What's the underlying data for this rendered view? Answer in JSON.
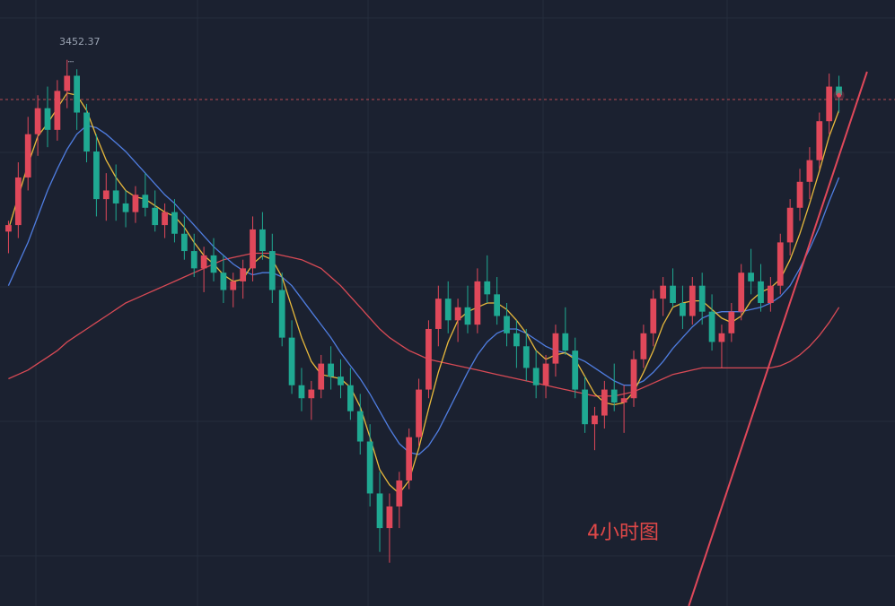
{
  "chart_data": {
    "type": "candlestick",
    "title": "4小时图",
    "max_marker": "3452.37",
    "ylim": [
      3200,
      3480
    ],
    "grid": true,
    "colors": {
      "background": "#1b2130",
      "grid": "#252d3d",
      "up": "#e0485a",
      "down": "#1fa992",
      "ma_short": "#e8b93c",
      "ma_mid": "#4f7de0",
      "ma_long": "#d84a55",
      "trendline": "#e0485a",
      "price_line": "#b94a52",
      "title": "#e04848"
    },
    "candles": [
      [
        3373,
        3378,
        3363,
        3376
      ],
      [
        3376,
        3405,
        3370,
        3398
      ],
      [
        3398,
        3426,
        3392,
        3418
      ],
      [
        3418,
        3436,
        3408,
        3430
      ],
      [
        3430,
        3440,
        3412,
        3420
      ],
      [
        3420,
        3443,
        3415,
        3438
      ],
      [
        3438,
        3452.37,
        3430,
        3445
      ],
      [
        3445,
        3448,
        3420,
        3428
      ],
      [
        3428,
        3432,
        3405,
        3410
      ],
      [
        3410,
        3418,
        3380,
        3388
      ],
      [
        3388,
        3400,
        3378,
        3392
      ],
      [
        3392,
        3404,
        3378,
        3386
      ],
      [
        3386,
        3392,
        3375,
        3382
      ],
      [
        3382,
        3394,
        3377,
        3390
      ],
      [
        3390,
        3400,
        3380,
        3384
      ],
      [
        3384,
        3392,
        3373,
        3376
      ],
      [
        3376,
        3386,
        3370,
        3382
      ],
      [
        3382,
        3388,
        3368,
        3372
      ],
      [
        3372,
        3380,
        3360,
        3364
      ],
      [
        3364,
        3372,
        3352,
        3356
      ],
      [
        3356,
        3366,
        3345,
        3362
      ],
      [
        3362,
        3370,
        3350,
        3354
      ],
      [
        3354,
        3362,
        3340,
        3346
      ],
      [
        3346,
        3354,
        3338,
        3350
      ],
      [
        3350,
        3360,
        3342,
        3356
      ],
      [
        3356,
        3380,
        3350,
        3374
      ],
      [
        3374,
        3382,
        3360,
        3364
      ],
      [
        3364,
        3372,
        3340,
        3346
      ],
      [
        3346,
        3354,
        3320,
        3324
      ],
      [
        3324,
        3332,
        3298,
        3302
      ],
      [
        3302,
        3310,
        3290,
        3296
      ],
      [
        3296,
        3304,
        3286,
        3300
      ],
      [
        3300,
        3316,
        3296,
        3312
      ],
      [
        3312,
        3320,
        3300,
        3306
      ],
      [
        3306,
        3314,
        3296,
        3302
      ],
      [
        3302,
        3310,
        3286,
        3290
      ],
      [
        3290,
        3298,
        3270,
        3276
      ],
      [
        3276,
        3284,
        3246,
        3252
      ],
      [
        3252,
        3262,
        3225,
        3236
      ],
      [
        3236,
        3252,
        3220,
        3246
      ],
      [
        3246,
        3262,
        3236,
        3258
      ],
      [
        3258,
        3282,
        3254,
        3278
      ],
      [
        3278,
        3305,
        3274,
        3300
      ],
      [
        3300,
        3332,
        3296,
        3328
      ],
      [
        3328,
        3348,
        3320,
        3342
      ],
      [
        3342,
        3350,
        3326,
        3332
      ],
      [
        3332,
        3342,
        3322,
        3338
      ],
      [
        3338,
        3348,
        3326,
        3330
      ],
      [
        3330,
        3356,
        3326,
        3350
      ],
      [
        3350,
        3362,
        3340,
        3344
      ],
      [
        3344,
        3352,
        3330,
        3334
      ],
      [
        3334,
        3340,
        3320,
        3326
      ],
      [
        3326,
        3332,
        3310,
        3320
      ],
      [
        3320,
        3328,
        3304,
        3310
      ],
      [
        3310,
        3318,
        3296,
        3302
      ],
      [
        3302,
        3316,
        3296,
        3312
      ],
      [
        3312,
        3330,
        3306,
        3326
      ],
      [
        3326,
        3338,
        3316,
        3318
      ],
      [
        3318,
        3324,
        3296,
        3300
      ],
      [
        3300,
        3306,
        3280,
        3284
      ],
      [
        3284,
        3292,
        3272,
        3288
      ],
      [
        3288,
        3304,
        3282,
        3300
      ],
      [
        3300,
        3312,
        3290,
        3294
      ],
      [
        3294,
        3302,
        3280,
        3296
      ],
      [
        3296,
        3318,
        3292,
        3314
      ],
      [
        3314,
        3330,
        3310,
        3326
      ],
      [
        3326,
        3346,
        3320,
        3342
      ],
      [
        3342,
        3352,
        3334,
        3348
      ],
      [
        3348,
        3356,
        3338,
        3340
      ],
      [
        3340,
        3348,
        3328,
        3334
      ],
      [
        3334,
        3352,
        3330,
        3348
      ],
      [
        3348,
        3354,
        3330,
        3336
      ],
      [
        3336,
        3344,
        3318,
        3322
      ],
      [
        3322,
        3330,
        3310,
        3326
      ],
      [
        3326,
        3340,
        3322,
        3336
      ],
      [
        3336,
        3358,
        3332,
        3354
      ],
      [
        3354,
        3365,
        3344,
        3350
      ],
      [
        3350,
        3358,
        3336,
        3340
      ],
      [
        3340,
        3352,
        3336,
        3348
      ],
      [
        3348,
        3372,
        3344,
        3368
      ],
      [
        3368,
        3388,
        3362,
        3384
      ],
      [
        3384,
        3402,
        3378,
        3396
      ],
      [
        3396,
        3412,
        3388,
        3406
      ],
      [
        3406,
        3428,
        3402,
        3424
      ],
      [
        3424,
        3446,
        3418,
        3440
      ],
      [
        3440,
        3445,
        3428,
        3436
      ]
    ],
    "ma_short": [
      3374,
      3389,
      3404,
      3417,
      3423,
      3430,
      3437,
      3436,
      3429,
      3417,
      3406,
      3398,
      3392,
      3389,
      3388,
      3385,
      3382,
      3380,
      3375,
      3368,
      3362,
      3358,
      3353,
      3350,
      3351,
      3358,
      3362,
      3360,
      3352,
      3338,
      3324,
      3313,
      3307,
      3306,
      3305,
      3301,
      3292,
      3278,
      3263,
      3256,
      3252,
      3258,
      3273,
      3291,
      3308,
      3322,
      3332,
      3336,
      3338,
      3340,
      3340,
      3337,
      3332,
      3326,
      3318,
      3314,
      3316,
      3317,
      3314,
      3306,
      3298,
      3294,
      3293,
      3294,
      3299,
      3308,
      3318,
      3330,
      3338,
      3340,
      3341,
      3341,
      3337,
      3333,
      3331,
      3334,
      3341,
      3345,
      3347,
      3351,
      3360,
      3372,
      3386,
      3401,
      3417,
      3429
    ],
    "ma_mid": [
      3348,
      3358,
      3368,
      3380,
      3392,
      3402,
      3411,
      3418,
      3422,
      3421,
      3418,
      3414,
      3410,
      3405,
      3400,
      3395,
      3390,
      3386,
      3381,
      3376,
      3371,
      3366,
      3362,
      3358,
      3355,
      3353,
      3354,
      3354,
      3352,
      3348,
      3342,
      3336,
      3330,
      3324,
      3317,
      3311,
      3305,
      3298,
      3290,
      3282,
      3275,
      3271,
      3270,
      3274,
      3281,
      3290,
      3299,
      3308,
      3316,
      3322,
      3326,
      3328,
      3328,
      3326,
      3323,
      3320,
      3318,
      3317,
      3315,
      3313,
      3310,
      3307,
      3304,
      3302,
      3302,
      3304,
      3308,
      3313,
      3319,
      3324,
      3329,
      3333,
      3335,
      3336,
      3336,
      3336,
      3337,
      3338,
      3340,
      3343,
      3348,
      3356,
      3365,
      3375,
      3387,
      3398
    ],
    "ma_long": [
      3305,
      3307,
      3309,
      3312,
      3315,
      3318,
      3322,
      3325,
      3328,
      3331,
      3334,
      3337,
      3340,
      3342,
      3344,
      3346,
      3348,
      3350,
      3352,
      3354,
      3356,
      3358,
      3360,
      3361,
      3362,
      3363,
      3363,
      3363,
      3362,
      3361,
      3360,
      3358,
      3356,
      3352,
      3348,
      3343,
      3338,
      3333,
      3328,
      3324,
      3321,
      3318,
      3316,
      3314,
      3313,
      3312,
      3311,
      3310,
      3309,
      3308,
      3307,
      3306,
      3305,
      3304,
      3303,
      3302,
      3301,
      3300,
      3299,
      3298,
      3297,
      3297,
      3297,
      3298,
      3299,
      3301,
      3303,
      3305,
      3307,
      3308,
      3309,
      3310,
      3310,
      3310,
      3310,
      3310,
      3310,
      3310,
      3310,
      3311,
      3313,
      3316,
      3320,
      3325,
      3331,
      3338
    ],
    "trendline": {
      "from": [
        70,
        3205
      ],
      "to": [
        87,
        3435
      ]
    },
    "current_price": 3434
  }
}
